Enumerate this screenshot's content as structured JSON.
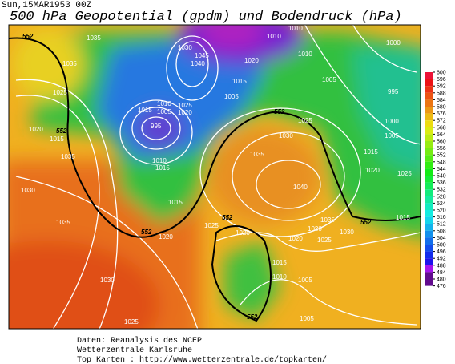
{
  "header": {
    "date": "Sun,15MAR1953 00Z",
    "title": "500 hPa Geopotential (gpdm) und Bodendruck (hPa)"
  },
  "colorbar": {
    "ticks": [
      600,
      596,
      592,
      588,
      584,
      580,
      576,
      572,
      568,
      564,
      560,
      556,
      552,
      548,
      544,
      540,
      536,
      532,
      528,
      524,
      520,
      516,
      512,
      508,
      504,
      500,
      496,
      492,
      488,
      484,
      480,
      476
    ]
  },
  "map": {
    "contour_labels": [
      "1035",
      "1030",
      "1045",
      "1040",
      "1035",
      "1025",
      "1020",
      "1015",
      "1035",
      "1030",
      "1035",
      "1030",
      "1025",
      "1015",
      "1010",
      "1005",
      "995",
      "1025",
      "1020",
      "1010",
      "1015",
      "1015",
      "1020",
      "1025",
      "1020",
      "1005",
      "1020",
      "1010",
      "1010",
      "1005",
      "1000",
      "995",
      "1000",
      "1005",
      "1015",
      "1020",
      "1025",
      "1025",
      "1030",
      "1035",
      "1040",
      "1035",
      "1030",
      "1025",
      "1020",
      "1015",
      "1010",
      "1005",
      "1005",
      "1015",
      "1030",
      "1015",
      "1010",
      "1000"
    ],
    "isoline_labels": [
      "552",
      "552",
      "552",
      "552",
      "552",
      "552",
      "552"
    ]
  },
  "footer": {
    "line1": "Daten: Reanalysis des NCEP",
    "line2": "Wetterzentrale Karlsruhe",
    "line3": "Top Karten  :  http://www.wetterzentrale.de/topkarten/"
  }
}
